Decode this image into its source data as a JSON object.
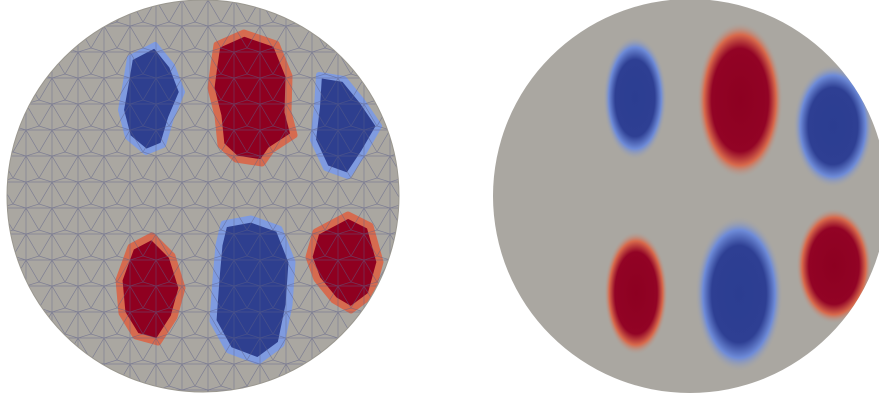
{
  "figure": {
    "panels": [
      {
        "name": "mesh-solution-panel",
        "style": "triangular-mesh-wireframe",
        "regions": [
          {
            "name": "blue-top-left",
            "sign": "negative"
          },
          {
            "name": "red-top-middle",
            "sign": "positive"
          },
          {
            "name": "blue-top-right",
            "sign": "negative"
          },
          {
            "name": "red-bottom-left",
            "sign": "positive"
          },
          {
            "name": "blue-bottom-mid",
            "sign": "negative"
          },
          {
            "name": "red-bottom-right",
            "sign": "positive"
          }
        ]
      },
      {
        "name": "smooth-solution-panel",
        "style": "smooth-shading",
        "regions": [
          {
            "name": "blue-top-left",
            "sign": "negative"
          },
          {
            "name": "red-top-middle",
            "sign": "positive"
          },
          {
            "name": "blue-top-right",
            "sign": "negative"
          },
          {
            "name": "red-bottom-left",
            "sign": "positive"
          },
          {
            "name": "blue-bottom-mid",
            "sign": "negative"
          },
          {
            "name": "red-bottom-right",
            "sign": "positive"
          }
        ]
      }
    ],
    "colors": {
      "background": "#ffffff",
      "disk": "#aaa7a1",
      "mesh_line": "#5a5f86",
      "positive": "#8f0020",
      "positive_edge": "#d66b4f",
      "negative": "#2e3f8f",
      "negative_edge": "#7f9be0"
    }
  }
}
